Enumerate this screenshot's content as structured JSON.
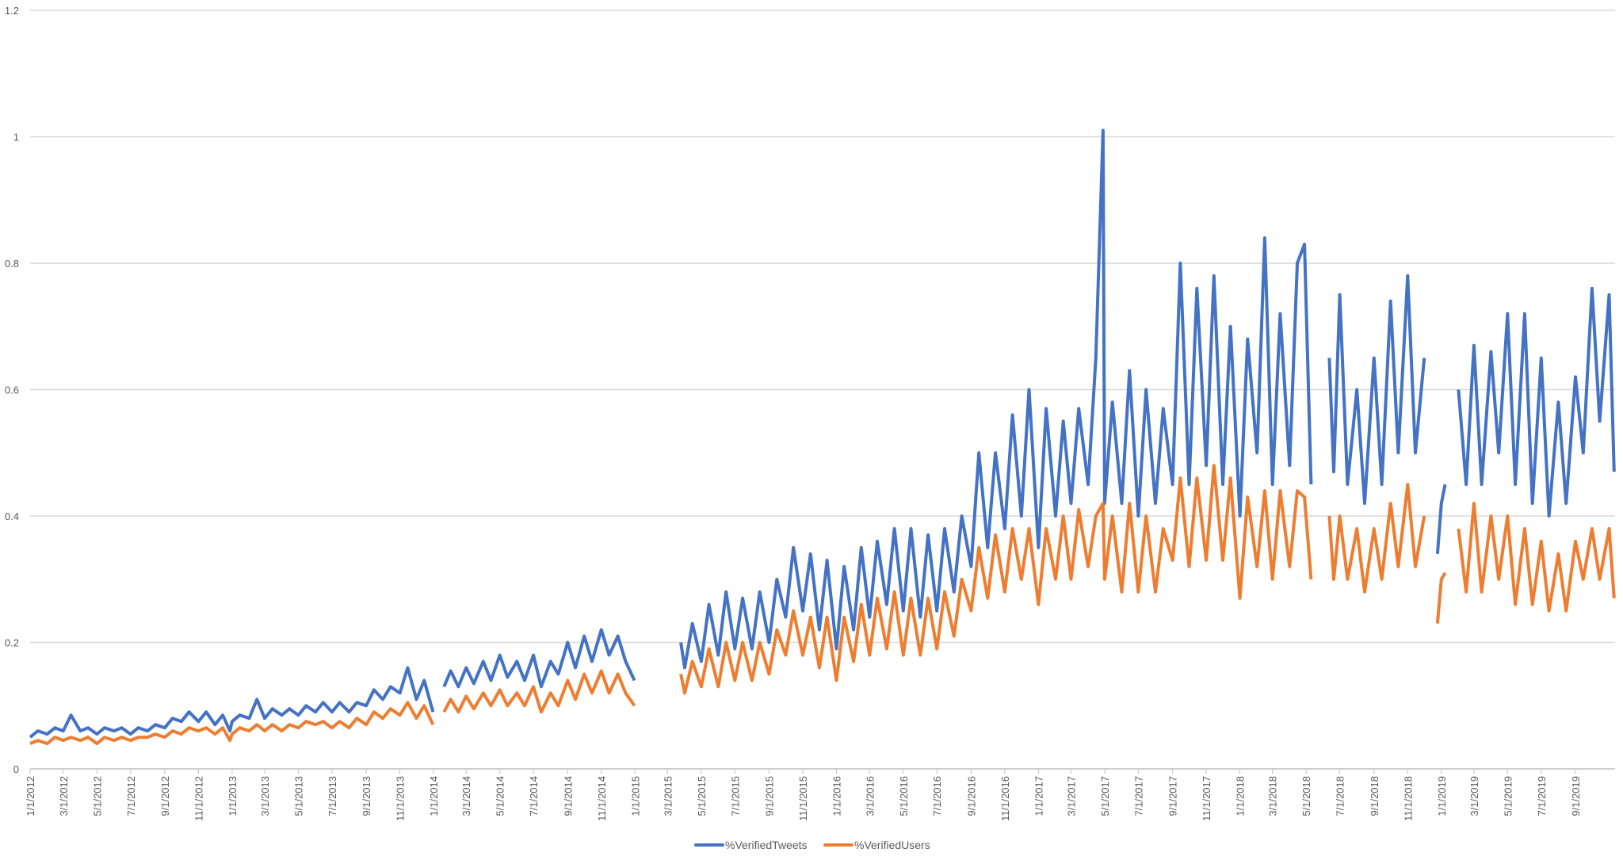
{
  "chart_data": {
    "type": "line",
    "title": "",
    "xlabel": "",
    "ylabel": "",
    "ylim": [
      0,
      1.2
    ],
    "y_ticks": [
      "0",
      "0.2",
      "0.4",
      "0.6",
      "0.8",
      "1",
      "1.2"
    ],
    "y_tick_values": [
      0,
      0.2,
      0.4,
      0.6,
      0.8,
      1,
      1.2
    ],
    "x_ticks": [
      "1/1/2012",
      "3/1/2012",
      "5/1/2012",
      "7/1/2012",
      "9/1/2012",
      "11/1/2012",
      "1/1/2013",
      "3/1/2013",
      "5/1/2013",
      "7/1/2013",
      "9/1/2013",
      "11/1/2013",
      "1/1/2014",
      "3/1/2014",
      "5/1/2014",
      "7/1/2014",
      "9/1/2014",
      "11/1/2014",
      "1/1/2015",
      "3/1/2015",
      "5/1/2015",
      "7/1/2015",
      "9/1/2015",
      "11/1/2015",
      "1/1/2016",
      "3/1/2016",
      "5/1/2016",
      "7/1/2016",
      "9/1/2016",
      "11/1/2016",
      "1/1/2017",
      "3/1/2017",
      "5/1/2017",
      "7/1/2017",
      "9/1/2017",
      "11/1/2017",
      "1/1/2018",
      "3/1/2018",
      "5/1/2018",
      "7/1/2018",
      "9/1/2018",
      "11/1/2018",
      "1/1/2019",
      "3/1/2019",
      "5/1/2019",
      "7/1/2019",
      "9/1/2019"
    ],
    "grid": true,
    "legend_position": "bottom",
    "series": [
      {
        "name": "%VerifiedTweets",
        "color": "#4472C4"
      },
      {
        "name": "%VerifiedUsers",
        "color": "#ED7D31"
      }
    ],
    "columns": [
      "date",
      "%VerifiedTweets",
      "%VerifiedUsers"
    ],
    "rows": [
      [
        "2012-01-01",
        0.05,
        0.04
      ],
      [
        "2012-01-15",
        0.06,
        0.045
      ],
      [
        "2012-02-01",
        0.055,
        0.04
      ],
      [
        "2012-02-15",
        0.065,
        0.05
      ],
      [
        "2012-03-01",
        0.06,
        0.045
      ],
      [
        "2012-03-15",
        0.085,
        0.05
      ],
      [
        "2012-04-01",
        0.06,
        0.045
      ],
      [
        "2012-04-15",
        0.065,
        0.05
      ],
      [
        "2012-05-01",
        0.055,
        0.04
      ],
      [
        "2012-05-15",
        0.065,
        0.05
      ],
      [
        "2012-06-01",
        0.06,
        0.045
      ],
      [
        "2012-06-15",
        0.065,
        0.05
      ],
      [
        "2012-07-01",
        0.055,
        0.045
      ],
      [
        "2012-07-15",
        0.065,
        0.05
      ],
      [
        "2012-08-01",
        0.06,
        0.05
      ],
      [
        "2012-08-15",
        0.07,
        0.055
      ],
      [
        "2012-09-01",
        0.065,
        0.05
      ],
      [
        "2012-09-15",
        0.08,
        0.06
      ],
      [
        "2012-10-01",
        0.075,
        0.055
      ],
      [
        "2012-10-15",
        0.09,
        0.065
      ],
      [
        "2012-11-01",
        0.075,
        0.06
      ],
      [
        "2012-11-15",
        0.09,
        0.065
      ],
      [
        "2012-12-01",
        0.07,
        0.055
      ],
      [
        "2012-12-15",
        0.085,
        0.065
      ],
      [
        "2012-12-28",
        0.06,
        0.045
      ],
      [
        "2013-01-01",
        0.075,
        0.055
      ],
      [
        "2013-01-15",
        0.085,
        0.065
      ],
      [
        "2013-02-01",
        0.08,
        0.06
      ],
      [
        "2013-02-15",
        0.11,
        0.07
      ],
      [
        "2013-03-01",
        0.08,
        0.06
      ],
      [
        "2013-03-15",
        0.095,
        0.07
      ],
      [
        "2013-04-01",
        0.085,
        0.06
      ],
      [
        "2013-04-15",
        0.095,
        0.07
      ],
      [
        "2013-05-01",
        0.085,
        0.065
      ],
      [
        "2013-05-15",
        0.1,
        0.075
      ],
      [
        "2013-06-01",
        0.09,
        0.07
      ],
      [
        "2013-06-15",
        0.105,
        0.075
      ],
      [
        "2013-07-01",
        0.09,
        0.065
      ],
      [
        "2013-07-15",
        0.105,
        0.075
      ],
      [
        "2013-08-01",
        0.09,
        0.065
      ],
      [
        "2013-08-15",
        0.105,
        0.08
      ],
      [
        "2013-09-01",
        0.1,
        0.07
      ],
      [
        "2013-09-15",
        0.125,
        0.09
      ],
      [
        "2013-10-01",
        0.11,
        0.08
      ],
      [
        "2013-10-15",
        0.13,
        0.095
      ],
      [
        "2013-11-01",
        0.12,
        0.085
      ],
      [
        "2013-11-15",
        0.16,
        0.105
      ],
      [
        "2013-12-01",
        0.11,
        0.08
      ],
      [
        "2013-12-15",
        0.14,
        0.1
      ],
      [
        "2013-12-31",
        0.09,
        0.07
      ],
      [
        "2014-01-05",
        null,
        null
      ],
      [
        "2014-01-20",
        0.13,
        0.09
      ],
      [
        "2014-02-01",
        0.155,
        0.11
      ],
      [
        "2014-02-15",
        0.13,
        0.09
      ],
      [
        "2014-03-01",
        0.16,
        0.115
      ],
      [
        "2014-03-15",
        0.135,
        0.095
      ],
      [
        "2014-04-01",
        0.17,
        0.12
      ],
      [
        "2014-04-15",
        0.14,
        0.1
      ],
      [
        "2014-05-01",
        0.18,
        0.125
      ],
      [
        "2014-05-15",
        0.145,
        0.1
      ],
      [
        "2014-06-01",
        0.17,
        0.12
      ],
      [
        "2014-06-15",
        0.14,
        0.1
      ],
      [
        "2014-07-01",
        0.18,
        0.13
      ],
      [
        "2014-07-15",
        0.13,
        0.09
      ],
      [
        "2014-08-01",
        0.17,
        0.12
      ],
      [
        "2014-08-15",
        0.15,
        0.1
      ],
      [
        "2014-09-01",
        0.2,
        0.14
      ],
      [
        "2014-09-15",
        0.16,
        0.11
      ],
      [
        "2014-10-01",
        0.21,
        0.15
      ],
      [
        "2014-10-15",
        0.17,
        0.12
      ],
      [
        "2014-11-01",
        0.22,
        0.155
      ],
      [
        "2014-11-15",
        0.18,
        0.12
      ],
      [
        "2014-12-01",
        0.21,
        0.15
      ],
      [
        "2014-12-15",
        0.17,
        0.12
      ],
      [
        "2014-12-31",
        0.14,
        0.1
      ],
      [
        "2015-01-05",
        null,
        null
      ],
      [
        "2015-03-25",
        0.2,
        0.15
      ],
      [
        "2015-04-01",
        0.16,
        0.12
      ],
      [
        "2015-04-15",
        0.23,
        0.17
      ],
      [
        "2015-05-01",
        0.17,
        0.13
      ],
      [
        "2015-05-15",
        0.26,
        0.19
      ],
      [
        "2015-06-01",
        0.18,
        0.13
      ],
      [
        "2015-06-15",
        0.28,
        0.2
      ],
      [
        "2015-07-01",
        0.19,
        0.14
      ],
      [
        "2015-07-15",
        0.27,
        0.2
      ],
      [
        "2015-08-01",
        0.19,
        0.14
      ],
      [
        "2015-08-15",
        0.28,
        0.2
      ],
      [
        "2015-09-01",
        0.2,
        0.15
      ],
      [
        "2015-09-15",
        0.3,
        0.22
      ],
      [
        "2015-10-01",
        0.24,
        0.18
      ],
      [
        "2015-10-15",
        0.35,
        0.25
      ],
      [
        "2015-11-01",
        0.25,
        0.18
      ],
      [
        "2015-11-15",
        0.34,
        0.24
      ],
      [
        "2015-12-01",
        0.22,
        0.16
      ],
      [
        "2015-12-15",
        0.33,
        0.24
      ],
      [
        "2016-01-01",
        0.19,
        0.14
      ],
      [
        "2016-01-15",
        0.32,
        0.24
      ],
      [
        "2016-02-01",
        0.22,
        0.17
      ],
      [
        "2016-02-15",
        0.35,
        0.26
      ],
      [
        "2016-03-01",
        0.24,
        0.18
      ],
      [
        "2016-03-15",
        0.36,
        0.27
      ],
      [
        "2016-04-01",
        0.26,
        0.19
      ],
      [
        "2016-04-15",
        0.38,
        0.28
      ],
      [
        "2016-05-01",
        0.25,
        0.18
      ],
      [
        "2016-05-15",
        0.38,
        0.27
      ],
      [
        "2016-06-01",
        0.24,
        0.18
      ],
      [
        "2016-06-15",
        0.37,
        0.27
      ],
      [
        "2016-07-01",
        0.25,
        0.19
      ],
      [
        "2016-07-15",
        0.38,
        0.28
      ],
      [
        "2016-08-01",
        0.28,
        0.21
      ],
      [
        "2016-08-15",
        0.4,
        0.3
      ],
      [
        "2016-09-01",
        0.32,
        0.25
      ],
      [
        "2016-09-15",
        0.5,
        0.35
      ],
      [
        "2016-10-01",
        0.35,
        0.27
      ],
      [
        "2016-10-15",
        0.5,
        0.37
      ],
      [
        "2016-11-01",
        0.38,
        0.28
      ],
      [
        "2016-11-15",
        0.56,
        0.38
      ],
      [
        "2016-12-01",
        0.4,
        0.3
      ],
      [
        "2016-12-15",
        0.6,
        0.38
      ],
      [
        "2017-01-01",
        0.35,
        0.26
      ],
      [
        "2017-01-15",
        0.57,
        0.38
      ],
      [
        "2017-02-01",
        0.4,
        0.3
      ],
      [
        "2017-02-15",
        0.55,
        0.4
      ],
      [
        "2017-03-01",
        0.42,
        0.3
      ],
      [
        "2017-03-15",
        0.57,
        0.41
      ],
      [
        "2017-04-01",
        0.45,
        0.32
      ],
      [
        "2017-04-15",
        0.65,
        0.4
      ],
      [
        "2017-04-28",
        1.01,
        0.42
      ],
      [
        "2017-05-01",
        0.42,
        0.3
      ],
      [
        "2017-05-15",
        0.58,
        0.4
      ],
      [
        "2017-06-01",
        0.42,
        0.28
      ],
      [
        "2017-06-15",
        0.63,
        0.42
      ],
      [
        "2017-07-01",
        0.4,
        0.28
      ],
      [
        "2017-07-15",
        0.6,
        0.4
      ],
      [
        "2017-08-01",
        0.42,
        0.28
      ],
      [
        "2017-08-15",
        0.57,
        0.38
      ],
      [
        "2017-09-01",
        0.45,
        0.33
      ],
      [
        "2017-09-15",
        0.8,
        0.46
      ],
      [
        "2017-10-01",
        0.45,
        0.32
      ],
      [
        "2017-10-15",
        0.76,
        0.46
      ],
      [
        "2017-11-01",
        0.48,
        0.33
      ],
      [
        "2017-11-15",
        0.78,
        0.48
      ],
      [
        "2017-12-01",
        0.45,
        0.33
      ],
      [
        "2017-12-15",
        0.7,
        0.46
      ],
      [
        "2018-01-01",
        0.4,
        0.27
      ],
      [
        "2018-01-15",
        0.68,
        0.43
      ],
      [
        "2018-02-01",
        0.5,
        0.32
      ],
      [
        "2018-02-15",
        0.84,
        0.44
      ],
      [
        "2018-03-01",
        0.45,
        0.3
      ],
      [
        "2018-03-15",
        0.72,
        0.44
      ],
      [
        "2018-04-01",
        0.48,
        0.32
      ],
      [
        "2018-04-15",
        0.8,
        0.44
      ],
      [
        "2018-04-28",
        0.83,
        0.43
      ],
      [
        "2018-05-10",
        0.45,
        0.3
      ],
      [
        "2018-05-20",
        null,
        null
      ],
      [
        "2018-06-12",
        0.65,
        0.4
      ],
      [
        "2018-06-20",
        0.47,
        0.3
      ],
      [
        "2018-07-01",
        0.75,
        0.4
      ],
      [
        "2018-07-15",
        0.45,
        0.3
      ],
      [
        "2018-08-01",
        0.6,
        0.38
      ],
      [
        "2018-08-15",
        0.42,
        0.28
      ],
      [
        "2018-09-01",
        0.65,
        0.38
      ],
      [
        "2018-09-15",
        0.45,
        0.3
      ],
      [
        "2018-10-01",
        0.74,
        0.42
      ],
      [
        "2018-10-15",
        0.5,
        0.32
      ],
      [
        "2018-11-01",
        0.78,
        0.45
      ],
      [
        "2018-11-15",
        0.5,
        0.32
      ],
      [
        "2018-12-01",
        0.65,
        0.4
      ],
      [
        "2018-12-10",
        null,
        null
      ],
      [
        "2018-12-25",
        0.34,
        0.23
      ],
      [
        "2019-01-01",
        0.42,
        0.3
      ],
      [
        "2019-01-08",
        0.45,
        0.31
      ],
      [
        "2019-01-15",
        null,
        null
      ],
      [
        "2019-02-01",
        0.6,
        0.38
      ],
      [
        "2019-02-15",
        0.45,
        0.28
      ],
      [
        "2019-03-01",
        0.67,
        0.42
      ],
      [
        "2019-03-15",
        0.45,
        0.28
      ],
      [
        "2019-04-01",
        0.66,
        0.4
      ],
      [
        "2019-04-15",
        0.5,
        0.3
      ],
      [
        "2019-05-01",
        0.72,
        0.4
      ],
      [
        "2019-05-15",
        0.45,
        0.26
      ],
      [
        "2019-06-01",
        0.72,
        0.38
      ],
      [
        "2019-06-15",
        0.42,
        0.26
      ],
      [
        "2019-07-01",
        0.65,
        0.36
      ],
      [
        "2019-07-15",
        0.4,
        0.25
      ],
      [
        "2019-08-01",
        0.58,
        0.34
      ],
      [
        "2019-08-15",
        0.42,
        0.25
      ],
      [
        "2019-09-01",
        0.62,
        0.36
      ],
      [
        "2019-09-15",
        0.5,
        0.3
      ],
      [
        "2019-10-01",
        0.76,
        0.38
      ],
      [
        "2019-10-15",
        0.55,
        0.3
      ],
      [
        "2019-11-01",
        0.75,
        0.38
      ],
      [
        "2019-11-10",
        0.47,
        0.27
      ]
    ]
  }
}
